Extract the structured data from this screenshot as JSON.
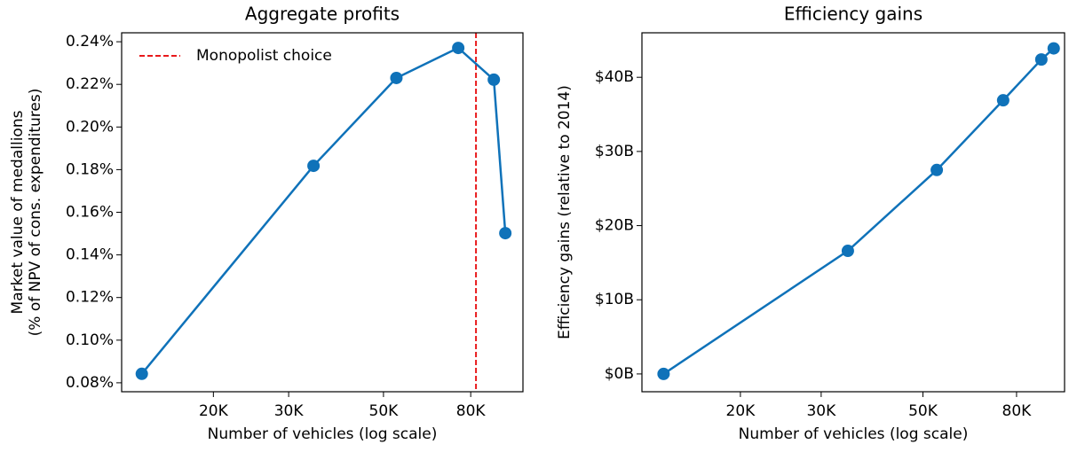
{
  "chart_data": [
    {
      "type": "line",
      "title": "Aggregate profits",
      "xlabel": "Number of vehicles (log scale)",
      "ylabel": [
        "Market value of medallions",
        "(% of NPV of cons. expenditures)"
      ],
      "xscale": "log",
      "x": [
        13600,
        34300,
        53600,
        74800,
        90600,
        96400
      ],
      "series": [
        {
          "color": "#0f72b9",
          "values": [
            0.0842,
            0.1818,
            0.223,
            0.2371,
            0.2222,
            0.1502
          ]
        }
      ],
      "xlim": [
        12200,
        106000
      ],
      "ylim": [
        0.0758,
        0.2442
      ],
      "xticks": [
        {
          "value": 20000,
          "label": "20K"
        },
        {
          "value": 30000,
          "label": "30K"
        },
        {
          "value": 50000,
          "label": "50K"
        },
        {
          "value": 80000,
          "label": "80K"
        }
      ],
      "yticks": [
        {
          "value": 0.08,
          "label": "0.08%"
        },
        {
          "value": 0.1,
          "label": "0.10%"
        },
        {
          "value": 0.12,
          "label": "0.12%"
        },
        {
          "value": 0.14,
          "label": "0.14%"
        },
        {
          "value": 0.16,
          "label": "0.16%"
        },
        {
          "value": 0.18,
          "label": "0.18%"
        },
        {
          "value": 0.2,
          "label": "0.20%"
        },
        {
          "value": 0.22,
          "label": "0.22%"
        },
        {
          "value": 0.24,
          "label": "0.24%"
        }
      ],
      "vline": {
        "value": 82300,
        "name": "Monopolist choice",
        "color": "#e8191b"
      },
      "legend": "upper left"
    },
    {
      "type": "line",
      "title": "Efficiency gains",
      "xlabel": "Number of vehicles (log scale)",
      "ylabel": [
        "Efficiency gains (relative to 2014)"
      ],
      "xscale": "log",
      "x": [
        13600,
        34300,
        53600,
        74800,
        90600,
        96400
      ],
      "series": [
        {
          "color": "#0f72b9",
          "values": [
            0,
            16.6,
            27.5,
            36.9,
            42.4,
            43.9
          ]
        }
      ],
      "xlim": [
        12200,
        101800
      ],
      "ylim": [
        -2.4,
        46.0
      ],
      "xticks": [
        {
          "value": 20000,
          "label": "20K"
        },
        {
          "value": 30000,
          "label": "30K"
        },
        {
          "value": 50000,
          "label": "50K"
        },
        {
          "value": 80000,
          "label": "80K"
        }
      ],
      "yticks": [
        {
          "value": 0,
          "label": "$0B"
        },
        {
          "value": 10,
          "label": "$10B"
        },
        {
          "value": 20,
          "label": "$20B"
        },
        {
          "value": 30,
          "label": "$30B"
        },
        {
          "value": 40,
          "label": "$40B"
        }
      ]
    }
  ]
}
